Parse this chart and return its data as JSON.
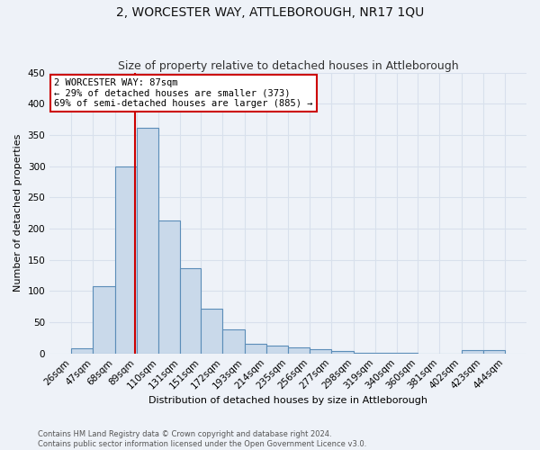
{
  "title": "2, WORCESTER WAY, ATTLEBOROUGH, NR17 1QU",
  "subtitle": "Size of property relative to detached houses in Attleborough",
  "xlabel": "Distribution of detached houses by size in Attleborough",
  "ylabel": "Number of detached properties",
  "footer1": "Contains HM Land Registry data © Crown copyright and database right 2024.",
  "footer2": "Contains public sector information licensed under the Open Government Licence v3.0.",
  "bar_edges": [
    26,
    47,
    68,
    89,
    110,
    131,
    151,
    172,
    193,
    214,
    235,
    256,
    277,
    298,
    319,
    340,
    360,
    381,
    402,
    423,
    444
  ],
  "bar_heights": [
    8,
    108,
    300,
    362,
    213,
    137,
    71,
    38,
    15,
    12,
    9,
    7,
    4,
    1,
    1,
    1,
    0,
    0,
    5,
    5
  ],
  "bar_color": "#c9d9ea",
  "bar_edge_color": "#5b8db8",
  "property_size": 87,
  "red_line_color": "#cc0000",
  "annotation_line1": "2 WORCESTER WAY: 87sqm",
  "annotation_line2": "← 29% of detached houses are smaller (373)",
  "annotation_line3": "69% of semi-detached houses are larger (885) →",
  "annotation_box_color": "#ffffff",
  "annotation_border_color": "#cc0000",
  "background_color": "#eef2f8",
  "grid_color": "#d8e0ec",
  "ylim": [
    0,
    450
  ],
  "yticks": [
    0,
    50,
    100,
    150,
    200,
    250,
    300,
    350,
    400,
    450
  ],
  "title_fontsize": 10,
  "subtitle_fontsize": 9,
  "tick_fontsize": 7.5,
  "ylabel_fontsize": 8,
  "xlabel_fontsize": 8,
  "footer_fontsize": 6
}
